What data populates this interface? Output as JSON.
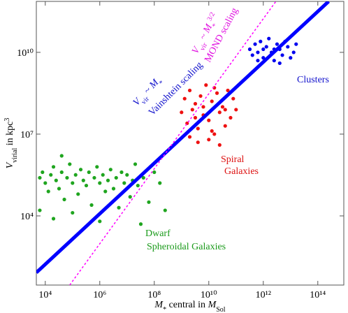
{
  "chart_data": {
    "type": "scatter",
    "xlog": true,
    "ylog": true,
    "xlim": [
      4700.0,
      900000000000000.0
    ],
    "ylim": [
      29,
      740000000000.0
    ],
    "xticks": [
      {
        "value": 10000.0,
        "label": "10⁴"
      },
      {
        "value": 1000000.0,
        "label": "10⁶"
      },
      {
        "value": 100000000.0,
        "label": "10⁸"
      },
      {
        "value": 10000000000.0,
        "label": "10¹⁰"
      },
      {
        "value": 1000000000000.0,
        "label": "10¹²"
      },
      {
        "value": 100000000000000.0,
        "label": "10¹⁴"
      }
    ],
    "yticks": [
      {
        "value": 10000.0,
        "label": "10⁴"
      },
      {
        "value": 10000000.0,
        "label": "10⁷"
      },
      {
        "value": 10000000000.0,
        "label": "10¹⁰"
      }
    ],
    "xlabel": {
      "parts": [
        {
          "t": "M"
        },
        {
          "t": "*",
          "sub": true
        },
        {
          "t": " central in "
        },
        {
          "t": "M"
        },
        {
          "t": "Sol",
          "sub": true
        }
      ]
    },
    "ylabel": {
      "parts": [
        {
          "t": "V"
        },
        {
          "t": "virial",
          "sub": true
        },
        {
          "t": " in kpc"
        },
        {
          "t": "3",
          "sup": true
        }
      ]
    },
    "series": [
      {
        "name": "Dwarf Spheroidal Galaxies",
        "color": "#1fa51f",
        "x": [
          6300.0,
          7900.0,
          10000.0,
          13000.0,
          16000.0,
          20000.0,
          25000.0,
          32000.0,
          40000.0,
          50000.0,
          63000.0,
          79000.0,
          100000.0,
          130000.0,
          160000.0,
          200000.0,
          250000.0,
          320000.0,
          400000.0,
          500000.0,
          630000.0,
          790000.0,
          1000000.0,
          1300000.0,
          1600000.0,
          2000000.0,
          2500000.0,
          3200000.0,
          4000000.0,
          5000000.0,
          6300000.0,
          7900000.0,
          10000000.0,
          13000000.0,
          16000000.0,
          20000000.0,
          25000000.0,
          40000000.0,
          63000000.0,
          100000000.0,
          160000000.0,
          250000000.0,
          6300.0,
          20000.0,
          100000.0,
          1000000.0,
          32000000.0,
          40000.0
        ],
        "y": [
          250000.0,
          400000.0,
          160000.0,
          79000.0,
          320000.0,
          630000.0,
          200000.0,
          100000.0,
          400000.0,
          40000.0,
          250000.0,
          790000.0,
          160000.0,
          320000.0,
          63000.0,
          500000.0,
          200000.0,
          130000.0,
          400000.0,
          25000.0,
          250000.0,
          630000.0,
          160000.0,
          320000.0,
          79000.0,
          200000.0,
          500000.0,
          100000.0,
          250000.0,
          20000.0,
          400000.0,
          160000.0,
          320000.0,
          50000.0,
          200000.0,
          790000.0,
          130000.0,
          250000.0,
          32000.0,
          400000.0,
          160000.0,
          16000.0,
          16000.0,
          7900.0,
          13000.0,
          6300.0,
          5000.0,
          1600000.0
        ]
      },
      {
        "name": "Spiral Galaxies",
        "color": "#ee1111",
        "x": [
          1000000000.0,
          1300000000.0,
          1600000000.0,
          2000000000.0,
          2500000000.0,
          3200000000.0,
          4000000000.0,
          5000000000.0,
          6300000000.0,
          7900000000.0,
          10000000000.0,
          13000000000.0,
          16000000000.0,
          20000000000.0,
          25000000000.0,
          32000000000.0,
          40000000000.0,
          50000000000.0,
          63000000000.0,
          79000000000.0,
          100000000000.0,
          2000000000.0,
          4000000000.0,
          10000000000.0,
          25000000000.0,
          6300000000.0,
          16000000000.0,
          3200000000.0,
          40000000000.0,
          13000000000.0
        ],
        "y": [
          63000000.0,
          200000000.0,
          25000000.0,
          400000000.0,
          79000000.0,
          130000000.0,
          16000000.0,
          250000000.0,
          50000000.0,
          630000000.0,
          32000000.0,
          160000000.0,
          10000000.0,
          320000000.0,
          63000000.0,
          100000000.0,
          20000000.0,
          400000000.0,
          40000000.0,
          200000000.0,
          79000000.0,
          7900000.0,
          5000000.0,
          6300000.0,
          4000000.0,
          100000000.0,
          500000000.0,
          40000000.0,
          79000000.0,
          13000000.0
        ]
      },
      {
        "name": "Clusters",
        "color": "#0000ee",
        "x": [
          320000000000.0,
          400000000000.0,
          500000000000.0,
          630000000000.0,
          790000000000.0,
          1000000000000.0,
          1300000000000.0,
          1600000000000.0,
          2000000000000.0,
          2500000000000.0,
          3200000000000.0,
          4000000000000.0,
          5000000000000.0,
          6300000000000.0,
          7900000000000.0,
          10000000000000.0,
          13000000000000.0,
          16000000000000.0,
          1000000000000.0,
          2500000000000.0,
          630000000000.0,
          4000000000000.0
        ],
        "y": [
          13000000000.0,
          7900000000.0,
          20000000000.0,
          10000000000.0,
          25000000000.0,
          6300000000.0,
          16000000000.0,
          32000000000.0,
          10000000000.0,
          5000000000.0,
          20000000000.0,
          13000000000.0,
          7900000000.0,
          25000000000.0,
          16000000000.0,
          6300000000.0,
          10000000000.0,
          20000000000.0,
          13000000000.0,
          13000000000.0,
          5000000000.0,
          4000000000.0
        ]
      }
    ],
    "lines": [
      {
        "color": "#0000ff",
        "width": 5,
        "dash": false,
        "x": [
          4700.0,
          250000000000000.0
        ],
        "y": [
          83,
          740000000000.0
        ]
      },
      {
        "color": "#ff00ff",
        "width": 1.5,
        "dash": true,
        "x": [
          79000.0,
          2900000000000.0
        ],
        "y": [
          29,
          740000000000.0
        ]
      }
    ],
    "annotations": [
      {
        "color": "#1010cc",
        "parts": [
          {
            "t": "V"
          },
          {
            "t": "vir",
            "sub": true
          },
          {
            "t": " ~ "
          },
          {
            "t": "M"
          },
          {
            "t": "*",
            "sub": true
          }
        ]
      },
      {
        "color": "#1010cc",
        "parts": [
          {
            "t": "Vainshtein scaling"
          }
        ]
      },
      {
        "color": "#e010e0",
        "parts": [
          {
            "t": "V"
          },
          {
            "t": "vir",
            "sub": true
          },
          {
            "t": " ~ "
          },
          {
            "t": "M"
          },
          {
            "t": "*",
            "sub": true
          },
          {
            "t": "3/2",
            "sup": true
          }
        ]
      },
      {
        "color": "#e010e0",
        "parts": [
          {
            "t": "MOND scaling"
          }
        ]
      },
      {
        "color": "#1010cc",
        "parts": [
          {
            "t": "Clusters"
          }
        ]
      },
      {
        "color": "#dd1111",
        "parts": [
          {
            "t": "Spiral"
          }
        ]
      },
      {
        "color": "#dd1111",
        "parts": [
          {
            "t": "Galaxies"
          }
        ]
      },
      {
        "color": "#1a9a1a",
        "parts": [
          {
            "t": "Dwarf"
          }
        ]
      },
      {
        "color": "#1a9a1a",
        "parts": [
          {
            "t": "Spheroidal Galaxies"
          }
        ]
      }
    ]
  }
}
